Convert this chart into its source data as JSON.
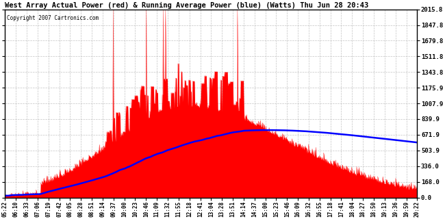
{
  "title": "West Array Actual Power (red) & Running Average Power (blue) (Watts) Thu Jun 28 20:43",
  "copyright": "Copyright 2007 Cartronics.com",
  "ymax": 2015.8,
  "ymin": 0.0,
  "yticks": [
    0.0,
    168.0,
    336.0,
    503.9,
    671.9,
    839.9,
    1007.9,
    1175.9,
    1343.8,
    1511.8,
    1679.8,
    1847.8,
    2015.8
  ],
  "bg_color": "#ffffff",
  "plot_bg_color": "#ffffff",
  "grid_color": "#aaaaaa",
  "actual_color": "#ff0000",
  "avg_color": "#0000ff",
  "border_color": "#000000",
  "xtick_labels": [
    "05:22",
    "06:10",
    "06:33",
    "07:06",
    "07:19",
    "07:42",
    "08:05",
    "08:28",
    "08:51",
    "09:14",
    "09:37",
    "10:00",
    "10:23",
    "10:46",
    "11:09",
    "11:32",
    "11:55",
    "12:18",
    "12:41",
    "13:04",
    "13:28",
    "13:51",
    "14:14",
    "14:37",
    "15:00",
    "15:23",
    "15:46",
    "16:09",
    "16:32",
    "16:55",
    "17:18",
    "17:41",
    "18:04",
    "18:27",
    "18:50",
    "19:13",
    "19:36",
    "19:59",
    "20:22"
  ]
}
